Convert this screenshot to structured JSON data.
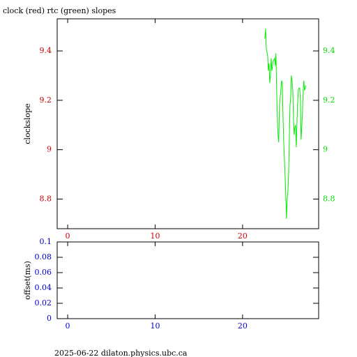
{
  "title": "clock (red) rtc (green) slopes",
  "footer": "2025-06-22  dilaton.physics.ubc.ca",
  "chart_data": [
    {
      "type": "line",
      "y_label": "clockslope",
      "xlim": [
        -1.2,
        28.7
      ],
      "xticks": [
        0,
        10,
        20
      ],
      "xtick_color": "#cc0000",
      "ylim": [
        8.68,
        9.53
      ],
      "yticks": [
        8.8,
        9,
        9.2,
        9.4
      ],
      "ytick_color": "#cc0000",
      "y2lim": [
        8.68,
        9.53
      ],
      "y2ticks": [
        8.8,
        9,
        9.2,
        9.4
      ],
      "y2tick_color": "#00dd00",
      "series": [
        {
          "color": "#00ee00",
          "axis": "y2",
          "x": [
            22.55,
            22.63,
            22.71,
            22.87,
            22.95,
            23.03,
            23.11,
            23.19,
            23.27,
            23.35,
            23.51,
            23.67,
            23.75,
            23.82,
            23.9,
            23.98,
            24.06,
            24.14,
            24.22,
            24.3,
            24.38,
            24.46,
            24.54,
            24.62,
            24.7,
            24.78,
            24.86,
            24.94,
            25.02,
            25.1,
            25.18,
            25.26,
            25.34,
            25.42,
            25.5,
            25.58,
            25.66,
            25.74,
            25.82,
            25.9,
            25.98,
            26.06,
            26.14,
            26.22,
            26.29,
            26.37,
            26.45,
            26.53,
            26.61,
            26.69,
            26.77,
            26.85,
            26.93,
            27.01,
            27.09,
            27.17,
            27.25
          ],
          "values": [
            9.45,
            9.49,
            9.41,
            9.38,
            9.32,
            9.35,
            9.27,
            9.3,
            9.37,
            9.32,
            9.36,
            9.37,
            9.34,
            9.39,
            9.24,
            9.13,
            9.06,
            9.03,
            9.18,
            9.21,
            9.24,
            9.28,
            9.27,
            9.15,
            9.04,
            8.97,
            8.9,
            8.82,
            8.72,
            8.8,
            8.83,
            8.9,
            9.04,
            9.18,
            9.21,
            9.3,
            9.28,
            9.24,
            9.13,
            9.06,
            9.09,
            9.1,
            9.01,
            9.11,
            9.18,
            9.24,
            9.25,
            9.25,
            9.2,
            9.04,
            9.09,
            9.15,
            9.24,
            9.28,
            9.24,
            9.25,
            9.26
          ]
        }
      ]
    },
    {
      "type": "line",
      "y_label": "offset(ms)",
      "xlim": [
        -1.2,
        28.7
      ],
      "xticks": [
        0,
        10,
        20
      ],
      "xtick_color": "#0000cc",
      "ylim": [
        0,
        0.1
      ],
      "yticks": [
        0,
        0.02,
        0.04,
        0.06,
        0.08,
        0.1
      ],
      "ytick_color": "#0000cc",
      "series": []
    }
  ]
}
